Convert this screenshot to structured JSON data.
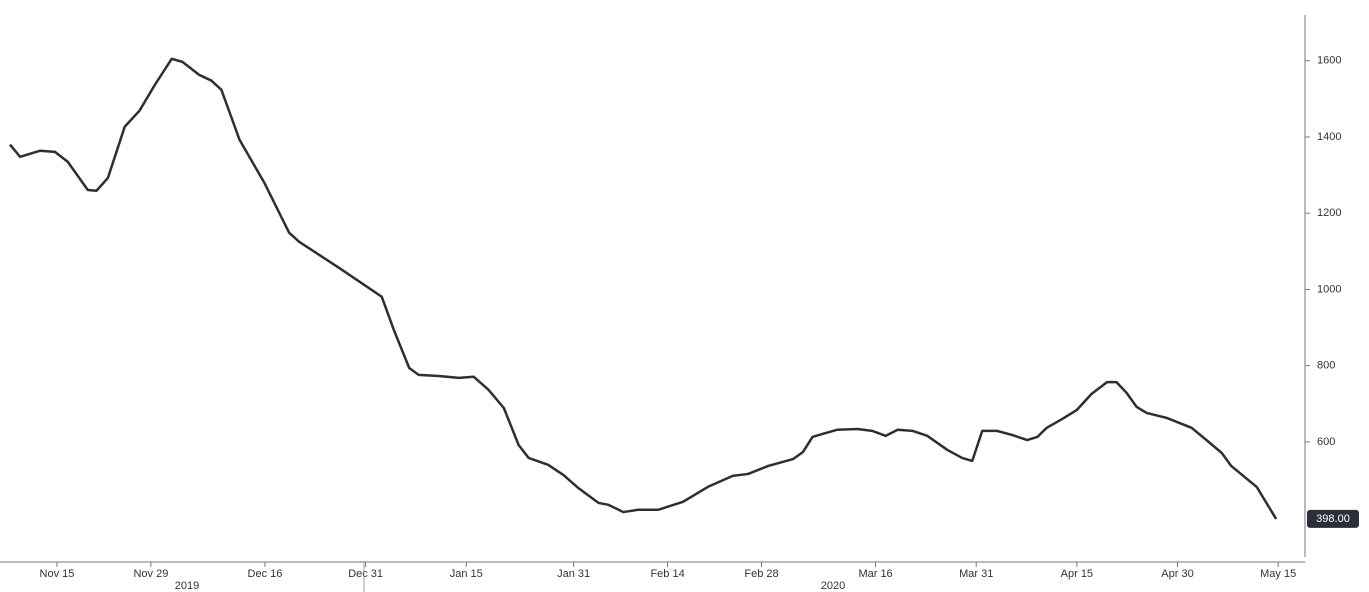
{
  "chart_data": {
    "type": "line",
    "x": [
      -7,
      -5.5,
      -2.5,
      -0.3,
      1.6,
      4.6,
      5.9,
      7.6,
      10.1,
      12.3,
      14.6,
      17.1,
      18.7,
      21.2,
      23,
      24.5,
      27.2,
      30.9,
      34.6,
      36.1,
      42,
      48.4,
      50.2,
      52.5,
      53.9,
      56.9,
      59.9,
      62.1,
      64.3,
      66.6,
      68.8,
      70.3,
      73.2,
      75.5,
      77.7,
      80.7,
      82.2,
      84.4,
      86.6,
      89.6,
      93.3,
      97,
      100.7,
      103,
      106,
      109.7,
      111.2,
      112.6,
      114.1,
      116.3,
      119.3,
      121.5,
      123.5,
      125.3,
      127.5,
      129.7,
      132.7,
      134.9,
      136.4,
      137.9,
      140.1,
      142.4,
      144.6,
      146.1,
      147.5,
      149.8,
      152,
      154.2,
      156.5,
      157.9,
      159.4,
      160.9,
      162.4,
      165.4,
      169.1,
      171.3,
      173.6,
      175,
      178.8,
      181.7
    ],
    "series": [
      {
        "color": "#2b3038",
        "end_label": "398.00",
        "values": [
          1380,
          1348,
          1364,
          1361,
          1335,
          1261,
          1259,
          1293,
          1427,
          1469,
          1537,
          1605,
          1597,
          1563,
          1548,
          1524,
          1393,
          1280,
          1149,
          1125,
          1057,
          981,
          894,
          794,
          776,
          773,
          768,
          771,
          737,
          689,
          592,
          558,
          540,
          513,
          479,
          440,
          435,
          416,
          422,
          422,
          443,
          482,
          511,
          516,
          537,
          555,
          574,
          613,
          621,
          632,
          634,
          629,
          616,
          632,
          629,
          616,
          579,
          558,
          550,
          629,
          629,
          618,
          605,
          613,
          637,
          660,
          684,
          726,
          757,
          757,
          729,
          692,
          676,
          663,
          637,
          605,
          571,
          537,
          482,
          398
        ]
      }
    ],
    "xlim": [
      -7,
      186
    ],
    "xticks": [
      {
        "value": 0,
        "label": "Nov 15"
      },
      {
        "value": 14,
        "label": "Nov 29"
      },
      {
        "value": 31,
        "label": "Dec 16"
      },
      {
        "value": 46,
        "label": "Dec 31"
      },
      {
        "value": 61,
        "label": "Jan 15"
      },
      {
        "value": 77,
        "label": "Jan 31"
      },
      {
        "value": 91,
        "label": "Feb 14"
      },
      {
        "value": 105,
        "label": "Feb 28"
      },
      {
        "value": 122,
        "label": "Mar 16"
      },
      {
        "value": 137,
        "label": "Mar 31"
      },
      {
        "value": 152,
        "label": "Apr 15"
      },
      {
        "value": 167,
        "label": "Apr 30"
      },
      {
        "value": 182,
        "label": "May 15"
      }
    ],
    "year_labels": [
      "2019",
      "2020"
    ],
    "ylim": [
      285,
      1720
    ],
    "yticks": [
      600,
      800,
      1000,
      1200,
      1400,
      1600
    ]
  }
}
